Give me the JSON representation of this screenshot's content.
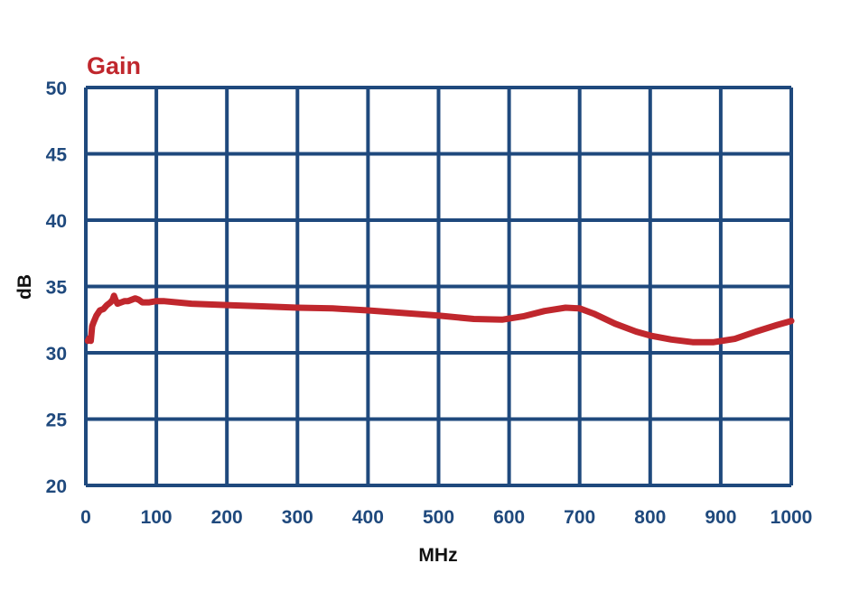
{
  "chart_data": {
    "type": "line",
    "title": "Gain",
    "xlabel": "MHz",
    "ylabel": "dB",
    "xlim": [
      0,
      1000
    ],
    "ylim": [
      20,
      50
    ],
    "x_ticks": [
      0,
      100,
      200,
      300,
      400,
      500,
      600,
      700,
      800,
      900,
      1000
    ],
    "y_ticks": [
      20,
      25,
      30,
      35,
      40,
      45,
      50
    ],
    "grid": true,
    "legend": "none",
    "colors": {
      "grid": "#1f497d",
      "tick_labels": "#1f497d",
      "title": "#c0272d",
      "axis_labels": "#111111"
    },
    "series": [
      {
        "color": "#c0272d",
        "points": [
          [
            3,
            30.9
          ],
          [
            5,
            31.1
          ],
          [
            7,
            30.9
          ],
          [
            9,
            32.0
          ],
          [
            11,
            32.3
          ],
          [
            15,
            32.8
          ],
          [
            20,
            33.2
          ],
          [
            25,
            33.3
          ],
          [
            30,
            33.6
          ],
          [
            35,
            33.8
          ],
          [
            38,
            34.0
          ],
          [
            40,
            34.3
          ],
          [
            42,
            34.0
          ],
          [
            45,
            33.7
          ],
          [
            50,
            33.8
          ],
          [
            55,
            33.9
          ],
          [
            60,
            33.9
          ],
          [
            65,
            34.0
          ],
          [
            70,
            34.1
          ],
          [
            75,
            34.0
          ],
          [
            80,
            33.8
          ],
          [
            90,
            33.8
          ],
          [
            100,
            33.9
          ],
          [
            110,
            33.9
          ],
          [
            150,
            33.7
          ],
          [
            200,
            33.6
          ],
          [
            250,
            33.5
          ],
          [
            300,
            33.4
          ],
          [
            350,
            33.35
          ],
          [
            400,
            33.2
          ],
          [
            450,
            33.0
          ],
          [
            500,
            32.8
          ],
          [
            550,
            32.55
          ],
          [
            590,
            32.5
          ],
          [
            620,
            32.75
          ],
          [
            650,
            33.15
          ],
          [
            680,
            33.4
          ],
          [
            700,
            33.35
          ],
          [
            720,
            32.95
          ],
          [
            750,
            32.2
          ],
          [
            780,
            31.6
          ],
          [
            800,
            31.3
          ],
          [
            830,
            31.0
          ],
          [
            860,
            30.8
          ],
          [
            890,
            30.8
          ],
          [
            920,
            31.05
          ],
          [
            950,
            31.6
          ],
          [
            980,
            32.1
          ],
          [
            1000,
            32.4
          ]
        ]
      }
    ]
  }
}
